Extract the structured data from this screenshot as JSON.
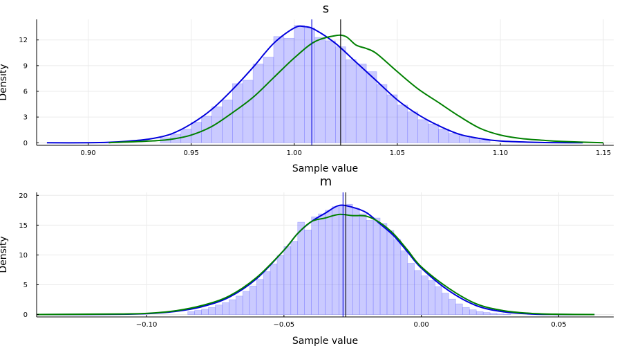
{
  "chart_data": [
    {
      "type": "histogram+density",
      "title": "s",
      "xlabel": "Sample value",
      "ylabel": "Density",
      "xlim": [
        0.875,
        1.155
      ],
      "ylim": [
        -0.3,
        14.4
      ],
      "xticks": [
        0.9,
        0.95,
        1.0,
        1.05,
        1.1,
        1.15
      ],
      "xtick_labels": [
        "0.90",
        "0.95",
        "1.00",
        "1.05",
        "1.10",
        "1.15"
      ],
      "yticks": [
        0,
        3,
        6,
        9,
        12
      ],
      "ytick_labels": [
        "0",
        "3",
        "6",
        "9",
        "12"
      ],
      "grid": true,
      "legend": "none",
      "colors": {
        "histogram": "#6666ff",
        "blue_line": "#0000dd",
        "green_line": "#008000",
        "vline": "#000000"
      },
      "histogram": {
        "bin_width": 0.005,
        "bin_starts": [
          0.935,
          0.94,
          0.945,
          0.95,
          0.955,
          0.96,
          0.965,
          0.97,
          0.975,
          0.98,
          0.985,
          0.99,
          0.995,
          1.0,
          1.005,
          1.01,
          1.015,
          1.02,
          1.025,
          1.03,
          1.035,
          1.04,
          1.045,
          1.05,
          1.055,
          1.06,
          1.065,
          1.07,
          1.075,
          1.08,
          1.085,
          1.09
        ],
        "values": [
          0.6,
          1.0,
          1.6,
          2.4,
          3.1,
          4.2,
          5.0,
          6.9,
          7.3,
          9.2,
          10.0,
          12.4,
          12.2,
          13.7,
          13.4,
          12.3,
          11.9,
          11.2,
          9.7,
          9.2,
          8.3,
          6.8,
          5.6,
          4.4,
          3.6,
          2.7,
          2.2,
          1.6,
          1.1,
          0.8,
          0.5,
          0.3
        ]
      },
      "series": [
        {
          "color": "#0000dd",
          "x": [
            0.88,
            0.9,
            0.91,
            0.92,
            0.93,
            0.94,
            0.95,
            0.96,
            0.97,
            0.98,
            0.99,
            1.0,
            1.005,
            1.01,
            1.02,
            1.03,
            1.04,
            1.05,
            1.06,
            1.07,
            1.08,
            1.09,
            1.1,
            1.12,
            1.14
          ],
          "y": [
            0,
            0,
            0.05,
            0.2,
            0.45,
            1.0,
            2.2,
            3.9,
            6.2,
            8.8,
            11.6,
            13.4,
            13.55,
            13.2,
            11.6,
            9.4,
            7.2,
            5.0,
            3.3,
            2.0,
            1.0,
            0.5,
            0.2,
            0.03,
            0
          ]
        },
        {
          "color": "#008000",
          "x": [
            0.91,
            0.93,
            0.94,
            0.95,
            0.96,
            0.97,
            0.98,
            0.99,
            1.0,
            1.01,
            1.02,
            1.025,
            1.03,
            1.035,
            1.04,
            1.05,
            1.06,
            1.07,
            1.08,
            1.09,
            1.1,
            1.11,
            1.12,
            1.13,
            1.15
          ],
          "y": [
            0,
            0.2,
            0.4,
            0.9,
            1.9,
            3.5,
            5.3,
            7.6,
            9.9,
            11.8,
            12.5,
            12.4,
            11.4,
            11.0,
            10.4,
            8.3,
            6.3,
            4.7,
            3.1,
            1.7,
            0.9,
            0.5,
            0.3,
            0.15,
            0
          ]
        }
      ],
      "vlines": [
        {
          "x": 1.0085,
          "color": "#0000dd"
        },
        {
          "x": 1.0225,
          "color": "#000000"
        }
      ]
    },
    {
      "type": "histogram+density",
      "title": "m",
      "xlabel": "Sample value",
      "ylabel": "Density",
      "xlim": [
        -0.14,
        0.07
      ],
      "ylim": [
        -0.4,
        20.5
      ],
      "xticks": [
        -0.1,
        -0.05,
        0.0,
        0.05
      ],
      "xtick_labels": [
        "−0.10",
        "−0.05",
        "0.00",
        "0.05"
      ],
      "yticks": [
        0,
        5,
        10,
        15,
        20
      ],
      "ytick_labels": [
        "0",
        "5",
        "10",
        "15",
        "20"
      ],
      "grid": true,
      "legend": "none",
      "colors": {
        "histogram": "#6666ff",
        "blue_line": "#0000dd",
        "green_line": "#008000",
        "vline": "#000000"
      },
      "histogram": {
        "bin_width": 0.0025,
        "bin_starts": [
          -0.085,
          -0.0825,
          -0.08,
          -0.0775,
          -0.075,
          -0.0725,
          -0.07,
          -0.0675,
          -0.065,
          -0.0625,
          -0.06,
          -0.0575,
          -0.055,
          -0.0525,
          -0.05,
          -0.0475,
          -0.045,
          -0.0425,
          -0.04,
          -0.0375,
          -0.035,
          -0.0325,
          -0.03,
          -0.0275,
          -0.025,
          -0.0225,
          -0.02,
          -0.0175,
          -0.015,
          -0.0125,
          -0.01,
          -0.0075,
          -0.005,
          -0.0025,
          0.0,
          0.0025,
          0.005,
          0.0075,
          0.01,
          0.0125,
          0.015,
          0.0175,
          0.02,
          0.0225,
          0.025,
          0.0275,
          0.03
        ],
        "values": [
          0.5,
          0.7,
          0.9,
          1.2,
          1.6,
          2.0,
          2.5,
          3.1,
          3.9,
          4.8,
          5.9,
          7.2,
          8.5,
          9.9,
          11.4,
          12.3,
          15.5,
          14.2,
          16.4,
          16.9,
          17.5,
          18.1,
          18.4,
          18.5,
          17.8,
          16.9,
          15.8,
          16.2,
          15.3,
          14.1,
          12.6,
          10.7,
          8.6,
          7.4,
          6.5,
          5.7,
          4.7,
          3.6,
          2.6,
          1.8,
          1.2,
          0.8,
          0.5,
          0.35,
          0.2,
          0.1,
          0.05
        ]
      },
      "series": [
        {
          "color": "#0000dd",
          "x": [
            -0.14,
            -0.11,
            -0.1,
            -0.09,
            -0.08,
            -0.07,
            -0.06,
            -0.05,
            -0.045,
            -0.04,
            -0.035,
            -0.03,
            -0.025,
            -0.02,
            -0.015,
            -0.01,
            -0.005,
            0.0,
            0.01,
            0.02,
            0.03,
            0.04,
            0.05,
            0.063
          ],
          "y": [
            0,
            0.05,
            0.15,
            0.5,
            1.3,
            2.9,
            6.0,
            10.8,
            13.6,
            15.6,
            17.0,
            18.3,
            18.0,
            17.1,
            15.2,
            13.2,
            10.5,
            7.8,
            4.0,
            1.5,
            0.45,
            0.1,
            0.02,
            0
          ]
        },
        {
          "color": "#008000",
          "x": [
            -0.14,
            -0.11,
            -0.1,
            -0.09,
            -0.08,
            -0.07,
            -0.06,
            -0.05,
            -0.045,
            -0.04,
            -0.035,
            -0.03,
            -0.025,
            -0.02,
            -0.015,
            -0.01,
            -0.005,
            0.0,
            0.01,
            0.02,
            0.03,
            0.04,
            0.05,
            0.063
          ],
          "y": [
            0,
            0.1,
            0.2,
            0.6,
            1.5,
            3.1,
            6.2,
            10.8,
            13.6,
            15.6,
            16.2,
            16.8,
            16.6,
            16.5,
            15.4,
            13.5,
            10.8,
            8.0,
            4.4,
            1.8,
            0.65,
            0.2,
            0.05,
            0
          ]
        }
      ],
      "vlines": [
        {
          "x": -0.0285,
          "color": "#0000dd"
        },
        {
          "x": -0.0275,
          "color": "#000000"
        }
      ]
    }
  ]
}
